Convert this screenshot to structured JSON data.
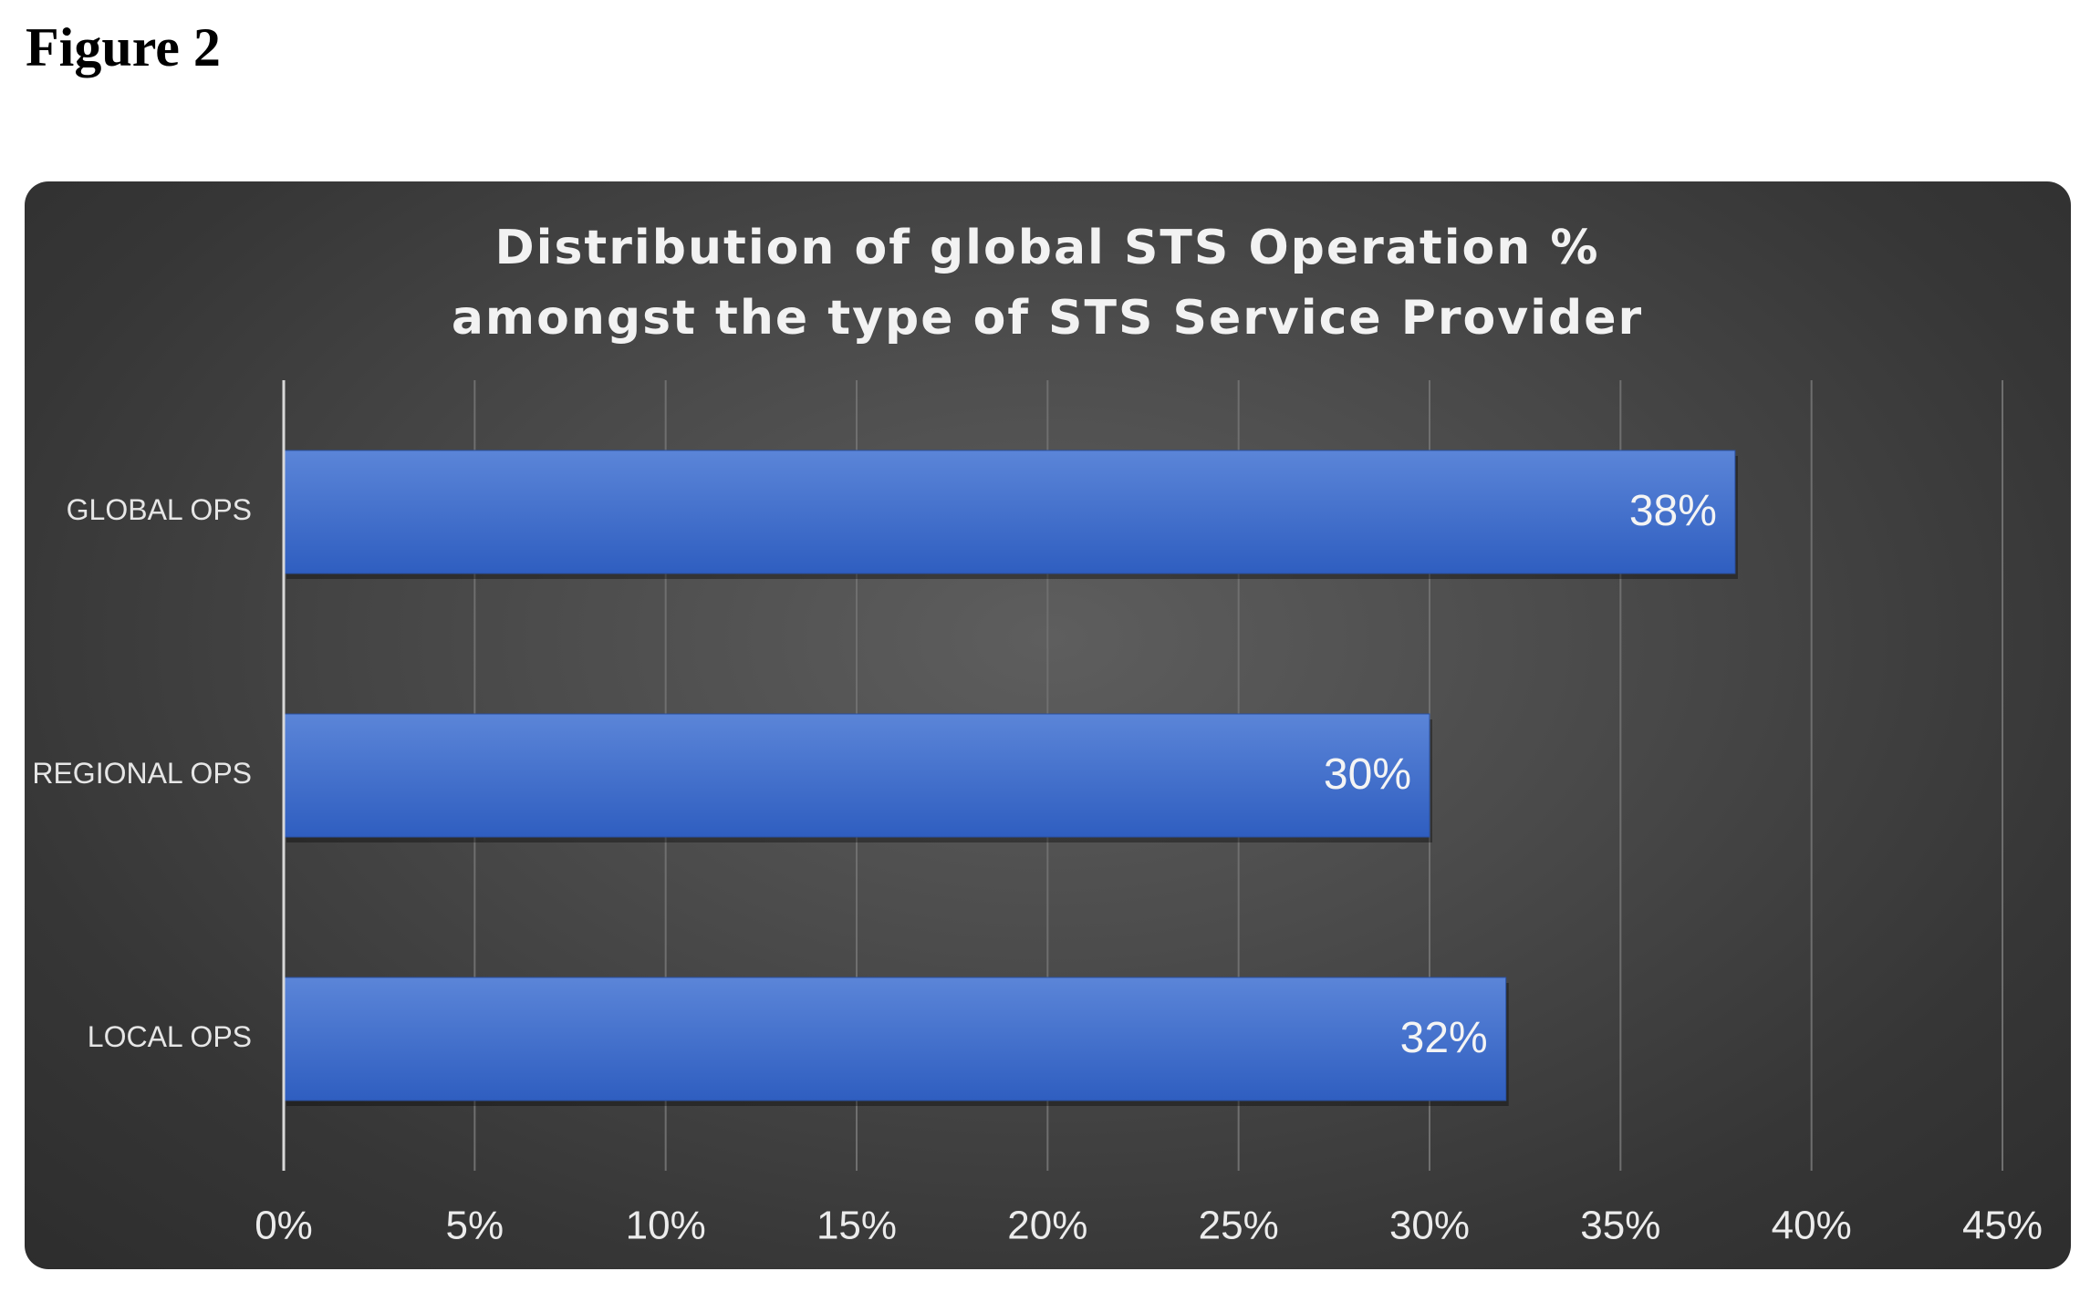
{
  "figure_label": "Figure 2",
  "chart_data": {
    "type": "bar",
    "orientation": "horizontal",
    "title_lines": [
      "Distribution of global STS Operation %",
      "amongst the type of STS Service Provider"
    ],
    "categories": [
      "GLOBAL OPS",
      "REGIONAL OPS",
      "LOCAL OPS"
    ],
    "values": [
      38,
      30,
      32
    ],
    "data_labels": [
      "38%",
      "30%",
      "32%"
    ],
    "xlim": [
      0,
      45
    ],
    "xticks": [
      0,
      5,
      10,
      15,
      20,
      25,
      30,
      35,
      40,
      45
    ],
    "xtick_labels": [
      "0%",
      "5%",
      "10%",
      "15%",
      "20%",
      "25%",
      "30%",
      "35%",
      "40%",
      "45%"
    ],
    "grid": true,
    "legend": "none",
    "colors": {
      "bar_top": "#5b85d8",
      "bar_bottom": "#2f5ec0",
      "background": "#4a4a4a",
      "text": "#f2f2f2"
    }
  }
}
